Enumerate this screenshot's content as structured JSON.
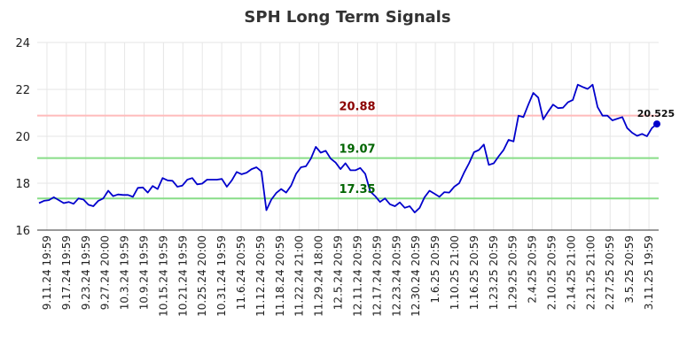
{
  "chart_data": {
    "type": "line",
    "title": "SPH Long Term Signals",
    "xlabel": "",
    "ylabel": "",
    "ylim": [
      16,
      24
    ],
    "yticks": [
      16,
      18,
      20,
      22,
      24
    ],
    "grid": true,
    "legend": "none",
    "x_tick_labels": [
      "9.11.24 19:59",
      "9.17.24 19:59",
      "9.23.24 19:59",
      "9.27.24 20:00",
      "10.3.24 19:59",
      "10.9.24 19:59",
      "10.15.24 19:59",
      "10.21.24 19:59",
      "10.25.24 20:00",
      "10.31.24 19:59",
      "11.6.24 20:59",
      "11.12.24 20:59",
      "11.18.24 20:59",
      "11.22.24 21:00",
      "11.29.24 18:00",
      "12.5.24 20:59",
      "12.11.24 20:59",
      "12.17.24 20:59",
      "12.23.24 20:59",
      "12.30.24 20:59",
      "1.6.25 20:59",
      "1.10.25 21:00",
      "1.16.25 20:59",
      "1.23.25 20:59",
      "1.29.25 20:59",
      "2.4.25 20:59",
      "2.10.25 20:59",
      "2.14.25 21:00",
      "2.21.25 21:00",
      "2.27.25 20:59",
      "3.5.25 20:59",
      "3.11.25 19:59"
    ],
    "series": [
      {
        "color": "#0000cc",
        "values": [
          17.15,
          17.25,
          17.28,
          17.4,
          17.28,
          17.15,
          17.2,
          17.12,
          17.35,
          17.3,
          17.08,
          17.02,
          17.25,
          17.35,
          17.68,
          17.45,
          17.52,
          17.5,
          17.5,
          17.42,
          17.8,
          17.82,
          17.6,
          17.88,
          17.75,
          18.22,
          18.12,
          18.1,
          17.85,
          17.9,
          18.15,
          18.22,
          17.95,
          17.98,
          18.15,
          18.15,
          18.15,
          18.18,
          17.85,
          18.12,
          18.48,
          18.38,
          18.45,
          18.6,
          18.68,
          18.5,
          16.85,
          17.3,
          17.58,
          17.75,
          17.6,
          17.9,
          18.4,
          18.68,
          18.72,
          19.05,
          19.55,
          19.3,
          19.38,
          19.05,
          18.88,
          18.6,
          18.85,
          18.55,
          18.55,
          18.65,
          18.4,
          17.65,
          17.45,
          17.2,
          17.35,
          17.1,
          17.02,
          17.18,
          16.95,
          17.02,
          16.75,
          16.95,
          17.4,
          17.68,
          17.55,
          17.42,
          17.62,
          17.6,
          17.85,
          18.0,
          18.45,
          18.85,
          19.32,
          19.42,
          19.65,
          18.78,
          18.85,
          19.15,
          19.42,
          19.85,
          19.78,
          20.88,
          20.82,
          21.35,
          21.85,
          21.65,
          20.72,
          21.05,
          21.35,
          21.2,
          21.22,
          21.45,
          21.55,
          22.2,
          22.1,
          22.02,
          22.2,
          21.25,
          20.88,
          20.88,
          20.68,
          20.75,
          20.82,
          20.35,
          20.15,
          20.02,
          20.1,
          20.0,
          20.35,
          20.525
        ]
      }
    ],
    "levels": [
      {
        "value": 20.88,
        "label": "20.88",
        "line_color": "#ffbbbb",
        "label_color": "#8b0000"
      },
      {
        "value": 19.07,
        "label": "19.07",
        "line_color": "#88dd88",
        "label_color": "#006400"
      },
      {
        "value": 17.35,
        "label": "17.35",
        "line_color": "#88dd88",
        "label_color": "#006400"
      }
    ],
    "last_value_label": "20.525"
  }
}
